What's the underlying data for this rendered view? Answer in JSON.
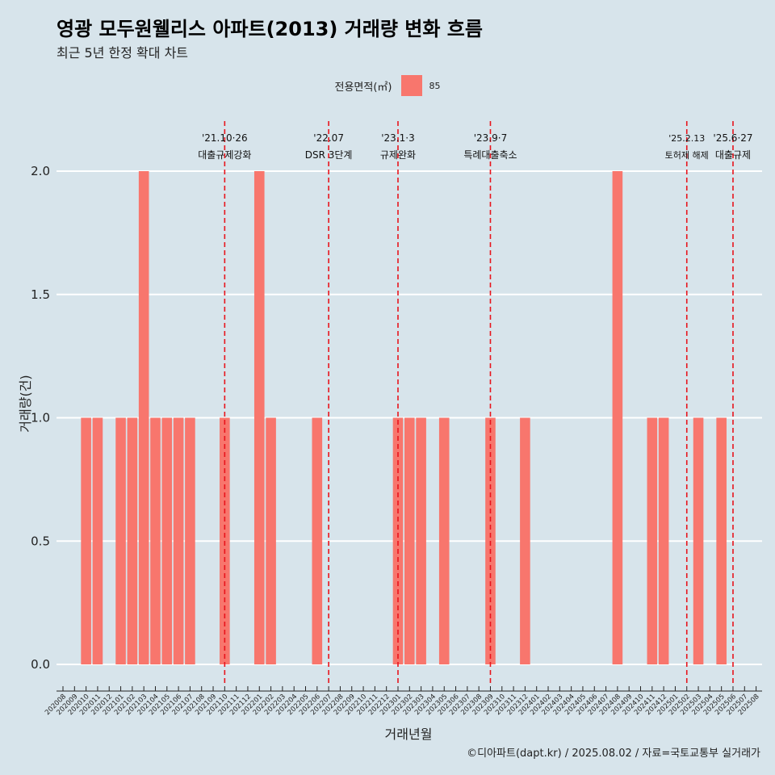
{
  "chart_data": {
    "type": "bar",
    "title": "영광 모두원웰리스 아파트(2013) 거래량 변화 흐름",
    "subtitle": "최근 5년 한정 확대 차트",
    "xlabel": "거래년월",
    "ylabel": "거래량(건)",
    "ylim": [
      0,
      2
    ],
    "y_ticks": [
      "0.0",
      "0.5",
      "1.0",
      "1.5",
      "2.0"
    ],
    "legend": {
      "title": "전용면적(㎡)",
      "position": "top",
      "items": [
        {
          "label": "85",
          "color": "#f8766d"
        }
      ]
    },
    "caption": "©디아파트(dapt.kr) / 2025.08.02 / 자료=국토교통부 실거래가",
    "categories": [
      "202008",
      "202009",
      "202010",
      "202011",
      "202012",
      "202101",
      "202102",
      "202103",
      "202104",
      "202105",
      "202106",
      "202107",
      "202108",
      "202109",
      "202110",
      "202111",
      "202112",
      "202201",
      "202202",
      "202203",
      "202204",
      "202205",
      "202206",
      "202207",
      "202208",
      "202209",
      "202210",
      "202211",
      "202212",
      "202301",
      "202302",
      "202303",
      "202304",
      "202305",
      "202306",
      "202307",
      "202308",
      "202309",
      "202310",
      "202311",
      "202312",
      "202401",
      "202402",
      "202403",
      "202404",
      "202405",
      "202406",
      "202407",
      "202408",
      "202409",
      "202410",
      "202411",
      "202412",
      "202501",
      "202502",
      "202503",
      "202504",
      "202505",
      "202506",
      "202507",
      "202508"
    ],
    "series": [
      {
        "name": "85",
        "color": "#f8766d",
        "data": [
          {
            "x": "202010",
            "y": 1
          },
          {
            "x": "202011",
            "y": 1
          },
          {
            "x": "202101",
            "y": 1
          },
          {
            "x": "202102",
            "y": 1
          },
          {
            "x": "202103",
            "y": 2
          },
          {
            "x": "202104",
            "y": 1
          },
          {
            "x": "202105",
            "y": 1
          },
          {
            "x": "202106",
            "y": 1
          },
          {
            "x": "202107",
            "y": 1
          },
          {
            "x": "202110",
            "y": 1
          },
          {
            "x": "202201",
            "y": 2
          },
          {
            "x": "202202",
            "y": 1
          },
          {
            "x": "202206",
            "y": 1
          },
          {
            "x": "202301",
            "y": 1
          },
          {
            "x": "202302",
            "y": 1
          },
          {
            "x": "202303",
            "y": 1
          },
          {
            "x": "202305",
            "y": 1
          },
          {
            "x": "202309",
            "y": 1
          },
          {
            "x": "202312",
            "y": 1
          },
          {
            "x": "202408",
            "y": 2
          },
          {
            "x": "202411",
            "y": 1
          },
          {
            "x": "202412",
            "y": 1
          },
          {
            "x": "202503",
            "y": 1
          },
          {
            "x": "202505",
            "y": 1
          }
        ]
      }
    ],
    "annotations": [
      {
        "x": "202110",
        "date": "'21.10·26",
        "text": "대출규제강화"
      },
      {
        "x": "202207",
        "date": "'22.07",
        "text": "DSR 3단계"
      },
      {
        "x": "202301",
        "date": "'23.1·3",
        "text": "규제완화"
      },
      {
        "x": "202309",
        "date": "'23.9·7",
        "text": "특례대출축소"
      },
      {
        "x": "202502",
        "date": "'25.2.13",
        "text": "토허제 해제"
      },
      {
        "x": "202506",
        "date": "'25.6·27",
        "text": "대출규제"
      }
    ],
    "grid": true,
    "colors": {
      "background": "#d7e4eb",
      "bar": "#f8766d",
      "event_line": "#e8141c",
      "gridline": "#ffffff"
    }
  }
}
